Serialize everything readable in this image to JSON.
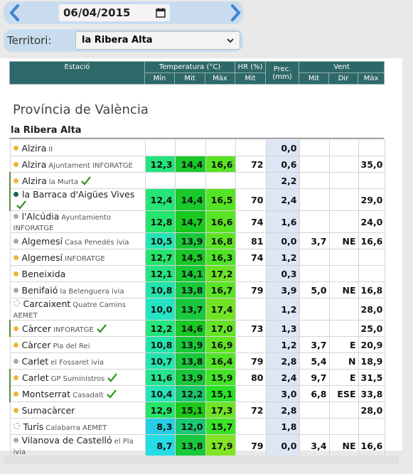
{
  "date_nav": {
    "date": "06/04/2015"
  },
  "filter": {
    "label": "Territori:",
    "selected": "la Ribera Alta"
  },
  "table": {
    "header": {
      "station": "Estació",
      "temperature": "Temperatura (°C)",
      "humidity": "HR (%)",
      "precipitation": "Prec. (mm)",
      "wind": "Vent",
      "sub": [
        "Mín",
        "Mit",
        "Màx",
        "Mit",
        "Mit",
        "Dir",
        "Màx"
      ]
    },
    "province": "Província de València",
    "region": "la Ribera Alta",
    "rows": [
      {
        "name": "Alzira",
        "sub": "II",
        "dot": "#f0b43c",
        "verified": false,
        "values": [
          null,
          null,
          null,
          null,
          "0,0",
          null,
          null,
          null
        ]
      },
      {
        "name": "Alzira",
        "sub": "Ajuntament INFORATGE",
        "dot": "#f0b43c",
        "verified": false,
        "values": [
          "12,3",
          "14,4",
          "16,6",
          "72",
          "0,6",
          null,
          null,
          "35,0"
        ]
      },
      {
        "name": "Alzira",
        "sub": "la Murta",
        "dot": "#f0b43c",
        "verified": true,
        "values": [
          null,
          null,
          null,
          null,
          "2,2",
          null,
          null,
          null
        ]
      },
      {
        "name": "la Barraca d'Aigües Vives",
        "sub": null,
        "dot": "#1b5e5e",
        "verified": true,
        "values": [
          "12,4",
          "14,4",
          "16,5",
          "70",
          "2,4",
          null,
          null,
          "29,0"
        ]
      },
      {
        "name": "l'Alcúdia",
        "sub": "Ayuntamiento INFORATGE",
        "dot": "#aaaaaa",
        "verified": false,
        "values": [
          "12,8",
          "14,7",
          "16,6",
          "74",
          "1,6",
          null,
          null,
          "24,0"
        ]
      },
      {
        "name": "Algemesí",
        "sub": "Casa Penedés ivia",
        "dot": "#aaaaaa",
        "verified": false,
        "values": [
          "10,5",
          "13,9",
          "16,8",
          "81",
          "0,0",
          "3,7",
          "NE",
          "16,6"
        ]
      },
      {
        "name": "Algemesí",
        "sub": "INFORATGE",
        "dot": "#f0b43c",
        "verified": false,
        "values": [
          "12,7",
          "14,5",
          "16,3",
          "74",
          "1,2",
          null,
          null,
          null
        ]
      },
      {
        "name": "Beneixida",
        "sub": null,
        "dot": "#f0b43c",
        "verified": false,
        "values": [
          "12,1",
          "14,1",
          "17,2",
          null,
          "0,3",
          null,
          null,
          null
        ]
      },
      {
        "name": "Benifaió",
        "sub": "la Belenguera ivia",
        "dot": "#aaaaaa",
        "verified": false,
        "values": [
          "10,8",
          "13,8",
          "16,7",
          "79",
          "3,9",
          "5,0",
          "NE",
          "16,8"
        ]
      },
      {
        "name": "Carcaixent",
        "sub": "Quatre Camins AEMET",
        "dot": "#ffffff",
        "verified": false,
        "values": [
          "10,0",
          "13,7",
          "17,4",
          null,
          "1,2",
          null,
          null,
          "28,0"
        ]
      },
      {
        "name": "Càrcer",
        "sub": "INFORATGE",
        "dot": "#f0b43c",
        "verified": true,
        "values": [
          "12,2",
          "14,6",
          "17,0",
          "73",
          "1,3",
          null,
          null,
          "25,0"
        ]
      },
      {
        "name": "Càrcer",
        "sub": "Pla del Rei",
        "dot": "#f0b43c",
        "verified": false,
        "values": [
          "10,8",
          "13,9",
          "16,9",
          null,
          "1,2",
          "3,7",
          "E",
          "20,9"
        ]
      },
      {
        "name": "Carlet",
        "sub": "el Fossaret ivia",
        "dot": "#aaaaaa",
        "verified": false,
        "values": [
          "10,7",
          "13,8",
          "16,4",
          "79",
          "2,8",
          "5,4",
          "N",
          "18,9"
        ]
      },
      {
        "name": "Carlet",
        "sub": "GP Suministros",
        "dot": "#f0b43c",
        "verified": true,
        "values": [
          "11,6",
          "13,9",
          "15,9",
          "80",
          "2,4",
          "9,7",
          "E",
          "31,5"
        ]
      },
      {
        "name": "Montserrat",
        "sub": "Casadalt",
        "dot": "#f0b43c",
        "verified": true,
        "values": [
          "10,4",
          "12,2",
          "15,1",
          null,
          "3,0",
          "6,8",
          "ESE",
          "33,8"
        ]
      },
      {
        "name": "Sumacàrcer",
        "sub": null,
        "dot": "#f0b43c",
        "verified": false,
        "values": [
          "12,9",
          "15,1",
          "17,3",
          "72",
          "2,8",
          null,
          null,
          "28,0"
        ]
      },
      {
        "name": "Turís",
        "sub": "Calabarra AEMET",
        "dot": "#ffffff",
        "verified": false,
        "values": [
          "8,3",
          "12,0",
          "15,7",
          null,
          "1,8",
          null,
          null,
          null
        ]
      },
      {
        "name": "Vilanova de Castelló",
        "sub": "el Pla ivia",
        "dot": "#aaaaaa",
        "verified": false,
        "values": [
          "8,7",
          "13,8",
          "17,9",
          "79",
          "0,0",
          "3,4",
          "NE",
          "16,6"
        ]
      }
    ]
  }
}
